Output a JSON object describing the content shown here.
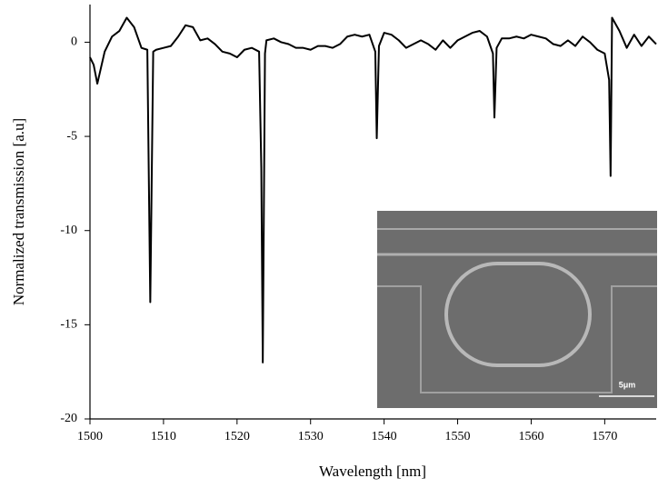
{
  "chart_data": {
    "type": "line",
    "x_label": "Wavelength [nm]",
    "y_label": "Normalized transmission [a.u]",
    "x": [
      1500,
      1500.5,
      1501,
      1502,
      1503,
      1504,
      1505,
      1506,
      1507,
      1507.8,
      1508.2,
      1508.6,
      1509,
      1510,
      1511,
      1512,
      1513,
      1514,
      1515,
      1516,
      1517,
      1518,
      1519,
      1520,
      1521,
      1522,
      1523,
      1523.3,
      1523.5,
      1523.8,
      1524,
      1525,
      1526,
      1527,
      1528,
      1529,
      1530,
      1531,
      1532,
      1533,
      1534,
      1535,
      1536,
      1537,
      1538,
      1538.8,
      1539,
      1539.3,
      1540,
      1541,
      1542,
      1543,
      1544,
      1545,
      1546,
      1547,
      1548,
      1549,
      1550,
      1551,
      1552,
      1553,
      1554,
      1554.8,
      1555,
      1555.3,
      1556,
      1557,
      1558,
      1559,
      1560,
      1561,
      1562,
      1563,
      1564,
      1565,
      1566,
      1567,
      1568,
      1569,
      1570,
      1570.6,
      1570.8,
      1571,
      1572,
      1573,
      1574,
      1575,
      1576,
      1577
    ],
    "series": [
      {
        "color": "#000000",
        "values": [
          -0.8,
          -1.2,
          -2.2,
          -0.5,
          0.3,
          0.6,
          1.3,
          0.8,
          -0.3,
          -0.4,
          -13.8,
          -0.5,
          -0.4,
          -0.3,
          -0.2,
          0.3,
          0.9,
          0.8,
          0.1,
          0.2,
          -0.1,
          -0.5,
          -0.6,
          -0.8,
          -0.4,
          -0.3,
          -0.5,
          -6.7,
          -17,
          -0.6,
          0.1,
          0.2,
          0,
          -0.1,
          -0.3,
          -0.3,
          -0.4,
          -0.2,
          -0.2,
          -0.3,
          -0.1,
          0.3,
          0.4,
          0.3,
          0.4,
          -0.5,
          -5.1,
          -0.2,
          0.5,
          0.4,
          0.1,
          -0.3,
          -0.1,
          0.1,
          -0.1,
          -0.4,
          0.1,
          -0.3,
          0.1,
          0.3,
          0.5,
          0.6,
          0.3,
          -0.6,
          -4,
          -0.3,
          0.2,
          0.2,
          0.3,
          0.2,
          0.4,
          0.3,
          0.2,
          -0.1,
          -0.2,
          0.1,
          -0.2,
          0.3,
          0,
          -0.4,
          -0.6,
          -2,
          -7.1,
          1.3,
          0.6,
          -0.3,
          0.4,
          -0.2,
          0.3,
          -0.1
        ]
      }
    ],
    "xlim": [
      1500,
      1577
    ],
    "xticks": [
      1500,
      1510,
      1520,
      1530,
      1540,
      1550,
      1560,
      1570
    ],
    "ylim": [
      -20,
      2
    ],
    "yticks": [
      0,
      -5,
      -10,
      -15,
      -20
    ],
    "inset_scale_label": "5μm"
  }
}
